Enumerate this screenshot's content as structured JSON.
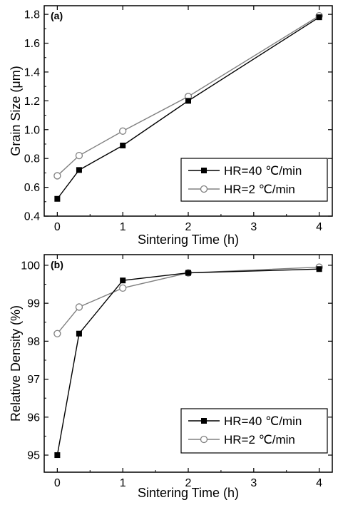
{
  "chart_data": [
    {
      "type": "line",
      "panel_label": "(a)",
      "x": [
        0,
        0.333,
        1,
        2,
        4
      ],
      "series": [
        {
          "name": "HR=40 ℃/min",
          "marker": "filled-square",
          "color": "#000000",
          "values": [
            0.52,
            0.72,
            0.89,
            1.2,
            1.78
          ]
        },
        {
          "name": "HR=2 ℃/min",
          "marker": "open-circle",
          "color": "#808080",
          "values": [
            0.68,
            0.82,
            0.99,
            1.23,
            1.79
          ]
        }
      ],
      "xlabel": "Sintering Time (h)",
      "ylabel": "Grain Size (μm)",
      "xlim": [
        -0.2,
        4.2
      ],
      "ylim": [
        0.4,
        1.86
      ],
      "xticks": [
        0,
        1,
        2,
        3,
        4
      ],
      "xtick_labels": [
        "0",
        "1",
        "2",
        "3",
        "4"
      ],
      "yticks": [
        0.4,
        0.6,
        0.8,
        1.0,
        1.2,
        1.4,
        1.6,
        1.8
      ],
      "ytick_labels": [
        "0.4",
        "0.6",
        "0.8",
        "1.0",
        "1.2",
        "1.4",
        "1.6",
        "1.8"
      ],
      "legend": "bottom-right",
      "grid": false
    },
    {
      "type": "line",
      "panel_label": "(b)",
      "x": [
        0,
        0.333,
        1,
        2,
        4
      ],
      "series": [
        {
          "name": "HR=40 ℃/min",
          "marker": "filled-square",
          "color": "#000000",
          "values": [
            95.0,
            98.2,
            99.6,
            99.8,
            99.9
          ]
        },
        {
          "name": "HR=2 ℃/min",
          "marker": "open-circle",
          "color": "#808080",
          "values": [
            98.2,
            98.9,
            99.4,
            99.8,
            99.95
          ]
        }
      ],
      "xlabel": "Sintering Time (h)",
      "ylabel": "Relative Density (%)",
      "xlim": [
        -0.2,
        4.2
      ],
      "ylim": [
        94.55,
        100.28
      ],
      "xticks": [
        0,
        1,
        2,
        3,
        4
      ],
      "xtick_labels": [
        "0",
        "1",
        "2",
        "3",
        "4"
      ],
      "yticks": [
        95,
        96,
        97,
        98,
        99,
        100
      ],
      "ytick_labels": [
        "95",
        "96",
        "97",
        "98",
        "99",
        "100"
      ],
      "legend": "bottom-right",
      "grid": false
    }
  ]
}
